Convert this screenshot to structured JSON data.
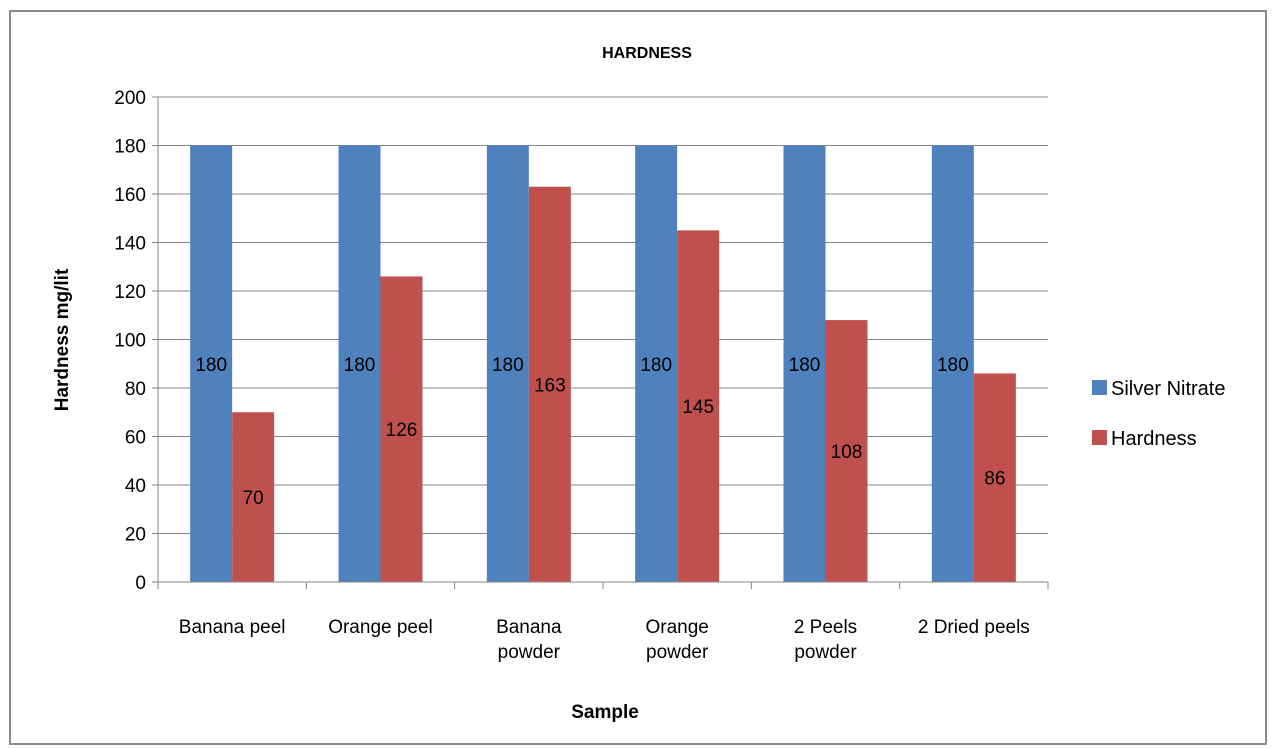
{
  "chart_data": {
    "type": "bar",
    "title": "HARDNESS",
    "xlabel": "Sample",
    "ylabel": "Hardness mg/lit",
    "categories": [
      [
        "Banana peel"
      ],
      [
        "Orange peel"
      ],
      [
        "Banana",
        "powder"
      ],
      [
        "Orange",
        "powder"
      ],
      [
        "2 Peels",
        "powder"
      ],
      [
        "2 Dried peels"
      ]
    ],
    "series": [
      {
        "name": "Silver Nitrate",
        "color": "#4f81bd",
        "values": [
          180,
          180,
          180,
          180,
          180,
          180
        ]
      },
      {
        "name": "Hardness",
        "color": "#c0504d",
        "values": [
          70,
          126,
          163,
          145,
          108,
          86
        ]
      }
    ],
    "ylim": [
      0,
      200
    ],
    "yticks": [
      0,
      20,
      40,
      60,
      80,
      100,
      120,
      140,
      160,
      180,
      200
    ],
    "grid": true,
    "legend": "right",
    "data_labels": true
  }
}
